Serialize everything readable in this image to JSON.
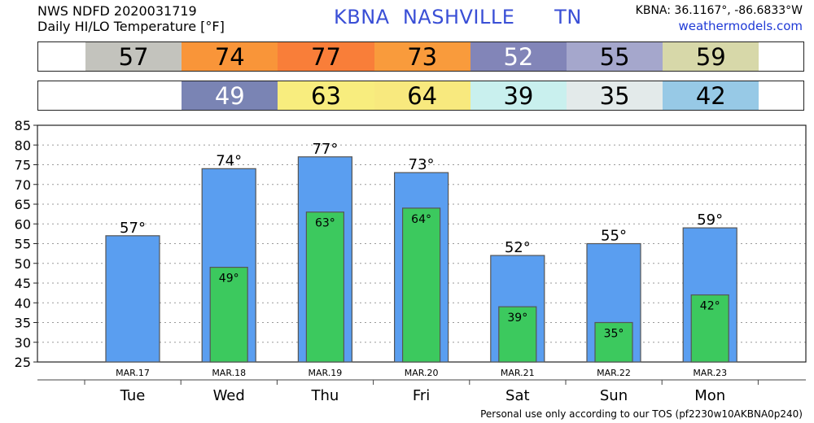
{
  "header": {
    "line1": "NWS NDFD 2020031719",
    "line2": "Daily HI/LO Temperature [°F]",
    "station_title": "KBNA  NASHVILLE      TN",
    "coords": "KBNA: 36.1167°, -86.6833°W",
    "site": "weathermodels.com"
  },
  "hi_row": [
    {
      "text": "57",
      "color": "#c3c3bd",
      "text_color": "#000"
    },
    {
      "text": "74",
      "color": "#f99539",
      "text_color": "#000"
    },
    {
      "text": "77",
      "color": "#f97e39",
      "text_color": "#000"
    },
    {
      "text": "73",
      "color": "#f99b3c",
      "text_color": "#000"
    },
    {
      "text": "52",
      "color": "#8285b8",
      "text_color": "#fff"
    },
    {
      "text": "55",
      "color": "#a5a7cc",
      "text_color": "#000"
    },
    {
      "text": "59",
      "color": "#d7d8a9",
      "text_color": "#000"
    }
  ],
  "lo_row": [
    {
      "text": "",
      "color": "#ffffff",
      "text_color": "#000"
    },
    {
      "text": "49",
      "color": "#7a84b4",
      "text_color": "#fff"
    },
    {
      "text": "63",
      "color": "#f8ed7e",
      "text_color": "#000"
    },
    {
      "text": "64",
      "color": "#f8e97e",
      "text_color": "#000"
    },
    {
      "text": "39",
      "color": "#c9f0ee",
      "text_color": "#000"
    },
    {
      "text": "35",
      "color": "#e3eaea",
      "text_color": "#000"
    },
    {
      "text": "42",
      "color": "#97c9e6",
      "text_color": "#000"
    }
  ],
  "chart_data": {
    "type": "bar",
    "categories": [
      "Tue",
      "Wed",
      "Thu",
      "Fri",
      "Sat",
      "Sun",
      "Mon"
    ],
    "dates": [
      "MAR.17",
      "MAR.18",
      "MAR.19",
      "MAR.20",
      "MAR.21",
      "MAR.22",
      "MAR.23"
    ],
    "series": [
      {
        "values": [
          57,
          74,
          77,
          73,
          52,
          55,
          59
        ],
        "labels": [
          "57°",
          "74°",
          "77°",
          "73°",
          "52°",
          "55°",
          "59°"
        ],
        "color": "#5a9ef0"
      },
      {
        "values": [
          null,
          49,
          63,
          64,
          39,
          35,
          42
        ],
        "labels": [
          "",
          "49°",
          "63°",
          "64°",
          "39°",
          "35°",
          "42°"
        ],
        "color": "#3cc95e"
      }
    ],
    "ylim": [
      25,
      85
    ],
    "yticks": [
      "25",
      "30",
      "35",
      "40",
      "45",
      "50",
      "55",
      "60",
      "65",
      "70",
      "75",
      "80",
      "85"
    ],
    "grid": true
  },
  "footer": "Personal use only according to our TOS (pf2230w10AKBNA0p240)"
}
